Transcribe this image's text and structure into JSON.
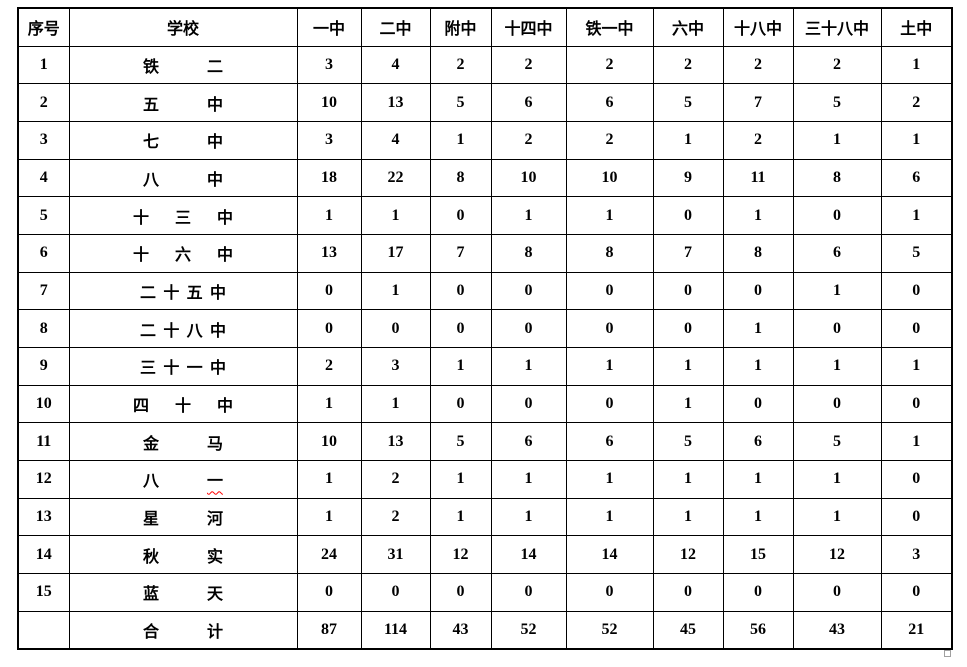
{
  "table": {
    "headers": [
      "序号",
      "学校",
      "一中",
      "二中",
      "附中",
      "十四中",
      "铁一中",
      "六中",
      "十八中",
      "三十八中",
      "土中"
    ],
    "rows": [
      {
        "no": "1",
        "school": "铁二",
        "values": [
          3,
          4,
          2,
          2,
          2,
          2,
          2,
          2,
          1
        ]
      },
      {
        "no": "2",
        "school": "五中",
        "values": [
          10,
          13,
          5,
          6,
          6,
          5,
          7,
          5,
          2
        ]
      },
      {
        "no": "3",
        "school": "七中",
        "values": [
          3,
          4,
          1,
          2,
          2,
          1,
          2,
          1,
          1
        ]
      },
      {
        "no": "4",
        "school": "八中",
        "values": [
          18,
          22,
          8,
          10,
          10,
          9,
          11,
          8,
          6
        ]
      },
      {
        "no": "5",
        "school": "十三中",
        "values": [
          1,
          1,
          0,
          1,
          1,
          0,
          1,
          0,
          1
        ]
      },
      {
        "no": "6",
        "school": "十六中",
        "values": [
          13,
          17,
          7,
          8,
          8,
          7,
          8,
          6,
          5
        ]
      },
      {
        "no": "7",
        "school": "二十五中",
        "values": [
          0,
          1,
          0,
          0,
          0,
          0,
          0,
          1,
          0
        ]
      },
      {
        "no": "8",
        "school": "二十八中",
        "values": [
          0,
          0,
          0,
          0,
          0,
          0,
          1,
          0,
          0
        ]
      },
      {
        "no": "9",
        "school": "三十一中",
        "values": [
          2,
          3,
          1,
          1,
          1,
          1,
          1,
          1,
          1
        ]
      },
      {
        "no": "10",
        "school": "四十中",
        "values": [
          1,
          1,
          0,
          0,
          0,
          1,
          0,
          0,
          0
        ]
      },
      {
        "no": "11",
        "school": "金马",
        "values": [
          10,
          13,
          5,
          6,
          6,
          5,
          6,
          5,
          1
        ]
      },
      {
        "no": "12",
        "school": "八一",
        "values": [
          1,
          2,
          1,
          1,
          1,
          1,
          1,
          1,
          0
        ],
        "spellcheck_underline_char": 1
      },
      {
        "no": "13",
        "school": "星河",
        "values": [
          1,
          2,
          1,
          1,
          1,
          1,
          1,
          1,
          0
        ]
      },
      {
        "no": "14",
        "school": "秋实",
        "values": [
          24,
          31,
          12,
          14,
          14,
          12,
          15,
          12,
          3
        ]
      },
      {
        "no": "15",
        "school": "蓝天",
        "values": [
          0,
          0,
          0,
          0,
          0,
          0,
          0,
          0,
          0
        ]
      }
    ],
    "total_row": {
      "no": "",
      "school": "合计",
      "values": [
        87,
        114,
        43,
        52,
        52,
        45,
        56,
        43,
        21
      ]
    }
  },
  "colors": {
    "border": "#000000",
    "text": "#000000",
    "spellcheck_underline": "#ff0000",
    "resize_handle_border": "#a0a0a0",
    "page_background": "#ffffff"
  },
  "decorations": {
    "table_resize_handle": "gray square handle at table bottom-right corner"
  }
}
